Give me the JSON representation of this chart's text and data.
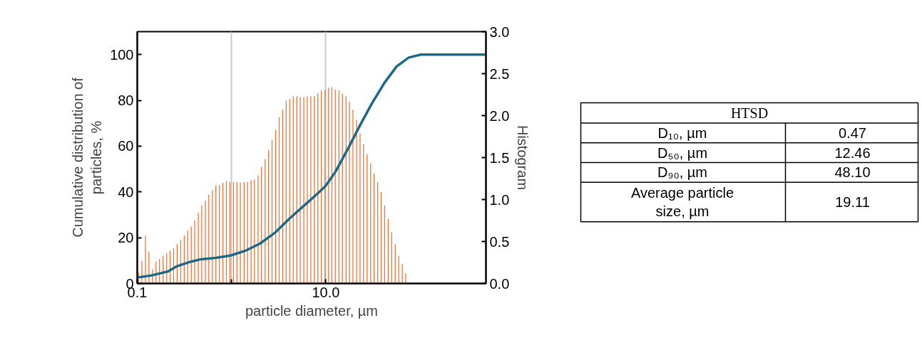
{
  "chart_data": [
    {
      "type": "line",
      "xlabel": "particle diameter, µm",
      "ylabel": "Cumulative distribution of particles, %",
      "y2label": "Histogram",
      "log": "x",
      "grid": "x",
      "marker": "none",
      "xlim": [
        0.1,
        500
      ],
      "xticks": [
        0.1,
        {
          "value": 1,
          "label": null
        },
        {
          "value": 10,
          "label": "10.0"
        }
      ],
      "ylim": [
        0,
        110
      ],
      "yticks": [
        0,
        20,
        40,
        60,
        80,
        100
      ],
      "y2lim": [
        0,
        3
      ],
      "y2ticks": [
        {
          "value": 0,
          "label": "0.0"
        },
        {
          "value": 0.5,
          "label": "0.5"
        },
        {
          "value": 1,
          "label": "1.0"
        },
        {
          "value": 1.5,
          "label": "1.5"
        },
        {
          "value": 2,
          "label": "2.0"
        },
        {
          "value": 2.5,
          "label": "2.5"
        },
        {
          "value": 3,
          "label": "3.0"
        }
      ],
      "series": [
        {
          "type": "bar",
          "axis": "y2",
          "color": "#f07030",
          "x": [
            0.103,
            0.112,
            0.122,
            0.133,
            0.145,
            0.158,
            0.172,
            0.188,
            0.205,
            0.223,
            0.243,
            0.265,
            0.289,
            0.315,
            0.343,
            0.374,
            0.407,
            0.444,
            0.483,
            0.527,
            0.574,
            0.626,
            0.682,
            0.743,
            0.809,
            0.882,
            0.961,
            1.05,
            1.14,
            1.24,
            1.36,
            1.48,
            1.61,
            1.75,
            1.91,
            2.08,
            2.27,
            2.47,
            2.69,
            2.94,
            3.2,
            3.49,
            3.8,
            4.14,
            4.51,
            4.92,
            5.36,
            5.84,
            6.36,
            6.93,
            7.55,
            8.23,
            8.97,
            9.78,
            10.7,
            11.6,
            12.6,
            13.8,
            15.0,
            16.4,
            17.8,
            19.4,
            21.2,
            23.1,
            25.1,
            27.4,
            29.9,
            32.5,
            35.5,
            38.6,
            42.1,
            45.9,
            50.0,
            54.5,
            59.4,
            64.7,
            70.5
          ],
          "values": [
            0.13,
            0.27,
            0.57,
            0.38,
            0.17,
            0.26,
            0.29,
            0.33,
            0.36,
            0.39,
            0.42,
            0.47,
            0.52,
            0.57,
            0.63,
            0.68,
            0.75,
            0.84,
            0.93,
            0.99,
            1.06,
            1.11,
            1.17,
            1.17,
            1.2,
            1.22,
            1.21,
            1.21,
            1.21,
            1.2,
            1.21,
            1.21,
            1.23,
            1.24,
            1.29,
            1.39,
            1.48,
            1.59,
            1.71,
            1.83,
            1.98,
            2.07,
            2.18,
            2.2,
            2.23,
            2.23,
            2.22,
            2.22,
            2.23,
            2.23,
            2.23,
            2.27,
            2.3,
            2.31,
            2.33,
            2.34,
            2.31,
            2.3,
            2.26,
            2.23,
            2.16,
            2.07,
            1.95,
            1.79,
            1.66,
            1.54,
            1.43,
            1.31,
            1.21,
            1.09,
            0.93,
            0.77,
            0.61,
            0.47,
            0.33,
            0.23,
            0.12
          ]
        },
        {
          "type": "line",
          "axis": "y",
          "color": "#1a6a8a",
          "x": [
            0.1,
            0.145,
            0.213,
            0.263,
            0.354,
            0.477,
            0.682,
            0.975,
            1.4,
            2.0,
            2.86,
            4.08,
            5.84,
            8.35,
            10.0,
            12.7,
            17.1,
            23.0,
            31.0,
            41.8,
            56.4,
            75.9,
            102,
            500
          ],
          "values": [
            2.6,
            3.6,
            5.3,
            7.5,
            9.3,
            10.6,
            11.2,
            12.2,
            14.3,
            17.4,
            22.0,
            28.2,
            33.9,
            39.6,
            42.7,
            48.9,
            58.7,
            69.0,
            78.8,
            87.6,
            94.8,
            98.7,
            100,
            100
          ]
        }
      ]
    },
    {
      "type": "other",
      "title": "HTSD",
      "categories": [
        "D₁₀, µm",
        "D₅₀, µm",
        "D₉₀, µm",
        "Average particle size, µm"
      ],
      "value_labels": [
        "0.47",
        "12.46",
        "48.10",
        "19.11"
      ]
    }
  ]
}
